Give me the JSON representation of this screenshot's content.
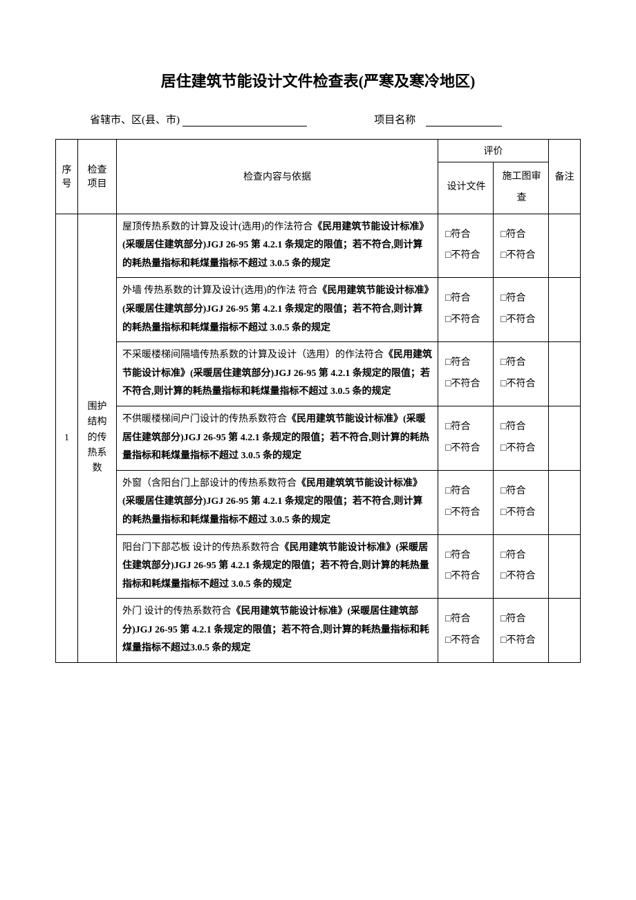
{
  "title": "居住建筑节能设计文件检查表(严寒及寒冷地区)",
  "headerLine": {
    "prefix": "省辖市、区(县、市)",
    "projectLabel": "项目名称"
  },
  "tableHeader": {
    "seq": "序号",
    "item": "检查项目",
    "content": "检查内容与依据",
    "eval": "评价",
    "evalDesign": "设计文件",
    "evalReview": "施工图审查",
    "remark": "备注"
  },
  "checkbox": {
    "conform": "□符合",
    "notConform": "□不符合"
  },
  "rows": [
    {
      "seq": "1",
      "item": "围护结构的传热系数",
      "contents": [
        {
          "parts": [
            {
              "text": "屋顶传热系数的计算及设计(选用)的作法符合",
              "bold": false
            },
            {
              "text": "《民用建筑节能设计标准》(采暖居住建筑部分)JGJ 26-95 第 4.2.1 条规定的限值；若不符合,则计算的耗热量指标和耗煤量指标不超过 3.0.5 条的规定",
              "bold": true
            }
          ]
        },
        {
          "parts": [
            {
              "text": "外墙 传热系数的计算及设计(选用)的作法 符合",
              "bold": false
            },
            {
              "text": "《民用建筑节能设计标准》(采暖居住建筑部分)JGJ  26-95 第 4.2.1 条规定的限值；若不符合,则计算的耗热量指标和耗煤量指标不超过 3.0.5 条的规定",
              "bold": true
            }
          ]
        },
        {
          "parts": [
            {
              "text": "不采暖楼梯间隔墙传热系数的计算及设计（选用）的作法符合",
              "bold": false
            },
            {
              "text": "《民用建筑节能设计标准》(采暖居住建筑部分)JGJ  26-95 第 4.2.1 条规定的限值；若不符合,则计算的耗热量指标和耗煤量指标不超过 3.0.5 条的规定",
              "bold": true
            }
          ]
        },
        {
          "parts": [
            {
              "text": "不供暖楼梯间户门设计的传热系数符合",
              "bold": false
            },
            {
              "text": "《民用建筑节能设计标准》(采暖居住建筑部分)JGJ  26-95 第 4.2.1 条规定的限值；若不符合,则计算的耗热量指标和耗煤量指标不超过 3.0.5 条的规定",
              "bold": true
            }
          ]
        },
        {
          "parts": [
            {
              "text": "外窗（含阳台门上部设计的传热系数符合",
              "bold": false
            },
            {
              "text": "《民用建筑筑节能设计标准》(采暖居住建筑部分)JGJ  26-95 第 4.2.1 条规定的限值；若不符合,则计算的耗热量指标和耗煤量指标不超过 3.0.5 条的规定",
              "bold": true
            }
          ]
        },
        {
          "parts": [
            {
              "text": "阳台门下部芯板 设计的传热系数符合",
              "bold": false
            },
            {
              "text": "《民用建筑节能设计标准》(采暖居住建筑部分)JGJ  26-95 第 4.2.1 条规定的限值；若不符合,则计算的耗热量指标和耗煤量指标不超过 3.0.5 条的规定",
              "bold": true
            }
          ]
        },
        {
          "parts": [
            {
              "text": "外门 设计的传热系数符合",
              "bold": false
            },
            {
              "text": "《民用建筑节能设计标准》(采暖居住建筑部分)JGJ 26-95 第 4.2.1 条规定的限值；若不符合,则计算的耗热量指标和耗煤量指标不超过3.0.5 条的规定",
              "bold": true
            }
          ]
        }
      ]
    }
  ],
  "styling": {
    "background": "#ffffff",
    "textColor": "#000000",
    "borderColor": "#000000",
    "titleFontSize": 22,
    "bodyFontSize": 14,
    "headerFontSize": 15,
    "pageWidth": 920,
    "pageHeight": 1302
  }
}
